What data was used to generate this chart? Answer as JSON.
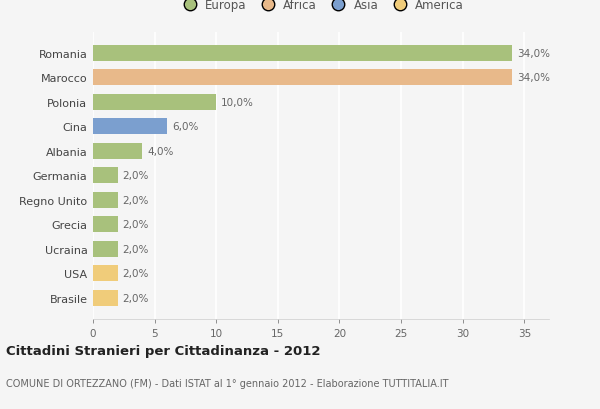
{
  "countries": [
    "Romania",
    "Marocco",
    "Polonia",
    "Cina",
    "Albania",
    "Germania",
    "Regno Unito",
    "Grecia",
    "Ucraina",
    "USA",
    "Brasile"
  ],
  "values": [
    34.0,
    34.0,
    10.0,
    6.0,
    4.0,
    2.0,
    2.0,
    2.0,
    2.0,
    2.0,
    2.0
  ],
  "colors": [
    "#a8c17c",
    "#e8b98a",
    "#a8c17c",
    "#7b9fcf",
    "#a8c17c",
    "#a8c17c",
    "#a8c17c",
    "#a8c17c",
    "#a8c17c",
    "#f0cc7a",
    "#f0cc7a"
  ],
  "labels": [
    "34,0%",
    "34,0%",
    "10,0%",
    "6,0%",
    "4,0%",
    "2,0%",
    "2,0%",
    "2,0%",
    "2,0%",
    "2,0%",
    "2,0%"
  ],
  "legend_labels": [
    "Europa",
    "Africa",
    "Asia",
    "America"
  ],
  "legend_colors": [
    "#a8c17c",
    "#e8b98a",
    "#7b9fcf",
    "#f0cc7a"
  ],
  "title": "Cittadini Stranieri per Cittadinanza - 2012",
  "subtitle": "COMUNE DI ORTEZZANO (FM) - Dati ISTAT al 1° gennaio 2012 - Elaborazione TUTTITALIA.IT",
  "xlim": [
    0,
    37
  ],
  "xticks": [
    0,
    5,
    10,
    15,
    20,
    25,
    30,
    35
  ],
  "background_color": "#f5f5f5",
  "grid_color": "#ffffff",
  "bar_height": 0.65
}
